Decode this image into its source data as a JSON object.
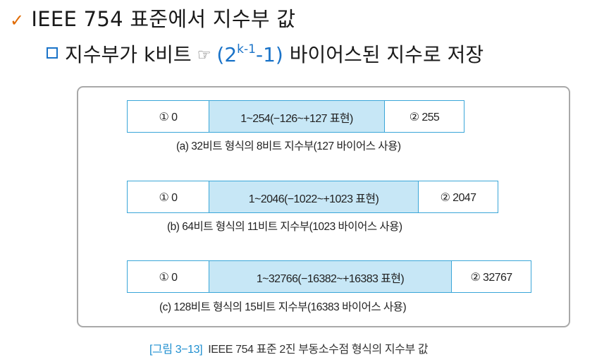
{
  "header": {
    "check_glyph": "✓",
    "title": "IEEE 754 표준에서 지수부 값",
    "subtitle_text": "지수부가 k비트",
    "hand_glyph": "☞",
    "formula_base": "(2",
    "formula_sup": "k-1",
    "formula_rest": "-1)",
    "subtitle_tail": "바이어스된 지수로 저장"
  },
  "diagram": {
    "rows": [
      {
        "left": "① 0",
        "middle": "1~254(−126~+127 표현)",
        "right": "② 255",
        "caption": "(a) 32비트 형식의 8비트 지수부(127 바이어스 사용)"
      },
      {
        "left": "① 0",
        "middle": "1~2046(−1022~+1023 표현)",
        "right": "② 2047",
        "caption": "(b) 64비트 형식의 11비트 지수부(1023 바이어스 사용)"
      },
      {
        "left": "① 0",
        "middle": "1~32766(−16382~+16383 표현)",
        "right": "② 32767",
        "caption": "(c) 128비트 형식의 15비트 지수부(16383 바이어스 사용)"
      }
    ]
  },
  "figure_caption": {
    "label": "[그림 3−13]",
    "text": "IEEE 754 표준 2진 부동소수점 형식의 지수부 값"
  },
  "colors": {
    "accent_blue": "#1a73c8",
    "bar_border": "#3aa6d8",
    "bar_fill": "#c7e7f6",
    "check_orange": "#e06a00"
  }
}
